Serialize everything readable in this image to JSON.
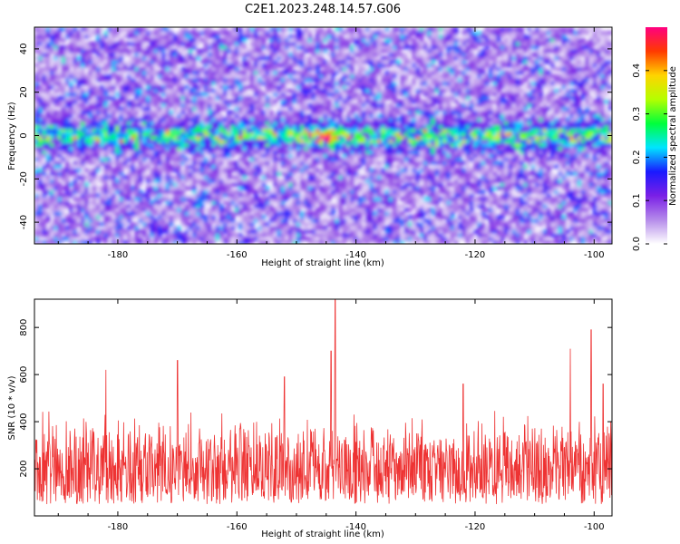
{
  "title": "C2E1.2023.248.14.57.G06",
  "chart_data": [
    {
      "type": "heatmap",
      "xlabel": "Height of straight line (km)",
      "ylabel": "Frequency (Hz)",
      "xlim": [
        -194,
        -97
      ],
      "ylim": [
        -50,
        50
      ],
      "x_ticks": [
        -180,
        -160,
        -140,
        -120,
        -100
      ],
      "y_ticks": [
        -40,
        -20,
        0,
        20,
        40
      ],
      "colorbar": {
        "label": "Normalized spectral amplitude",
        "range": [
          0,
          0.5
        ],
        "ticks": [
          0.0,
          0.1,
          0.2,
          0.3,
          0.4
        ],
        "colormap": [
          "#ffffff",
          "#b58bea",
          "#7a1fe6",
          "#1a1aff",
          "#00e5ff",
          "#00ff3c",
          "#b4ff00",
          "#ffd400",
          "#ff3a00",
          "#ff0080"
        ]
      },
      "band": {
        "center_frequency": 0,
        "half_width": 5,
        "peak_value": 0.5,
        "peak_x": -145
      },
      "background_level": 0.05,
      "legend": "none",
      "grid": false
    },
    {
      "type": "line",
      "xlabel": "Height of straight line (km)",
      "ylabel": "SNR (10 * v/v)",
      "xlim": [
        -194,
        -97
      ],
      "ylim": [
        0,
        920
      ],
      "x_ticks": [
        -180,
        -160,
        -140,
        -120,
        -100
      ],
      "y_ticks": [
        200,
        400,
        600,
        800
      ],
      "series": [
        {
          "color": "#ee3333",
          "typical_range": [
            50,
            450
          ],
          "peaks": [
            {
              "x": -143.5,
              "y": 920
            },
            {
              "x": -144.2,
              "y": 700
            },
            {
              "x": -182.0,
              "y": 620
            },
            {
              "x": -170.0,
              "y": 660
            },
            {
              "x": -104.0,
              "y": 710
            },
            {
              "x": -100.5,
              "y": 790
            },
            {
              "x": -98.5,
              "y": 560
            },
            {
              "x": -152.0,
              "y": 590
            },
            {
              "x": -122.0,
              "y": 560
            }
          ]
        }
      ],
      "legend": "none",
      "grid": false
    }
  ]
}
